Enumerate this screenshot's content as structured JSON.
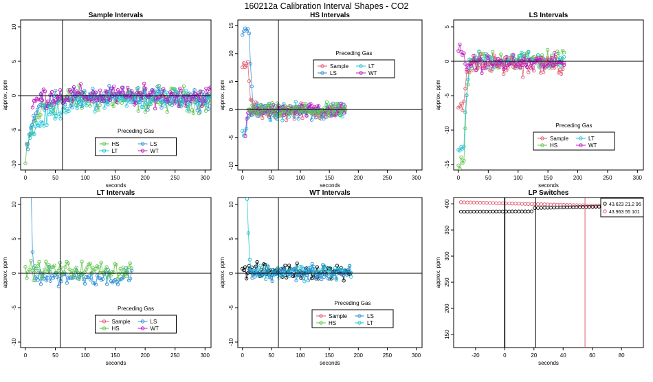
{
  "figure_title": "160212a   Calibration Interval Shapes - CO2",
  "colors": {
    "Sample": "#e05a6e",
    "HS": "#5cc24a",
    "LS": "#2f8fd8",
    "LT": "#1ec4d4",
    "WT": "#c016c0",
    "black": "#000000"
  },
  "chart_data": [
    {
      "type": "scatter",
      "title": "Sample Intervals",
      "xlabel": "seconds",
      "ylabel": "approx. ppm",
      "xlim": [
        -8,
        310
      ],
      "ylim": [
        -10.8,
        11
      ],
      "xticks": [
        0,
        50,
        100,
        150,
        200,
        250,
        300
      ],
      "yticks": [
        -10,
        -5,
        0,
        5,
        10
      ],
      "hline": 0,
      "vline": 62,
      "legend": {
        "title": "Preceding Gas",
        "position": "bottom-middle",
        "entries": [
          "HS",
          "LS",
          "LT",
          "WT"
        ]
      },
      "series": [
        {
          "name": "HS",
          "start": -10,
          "settle": -0.5,
          "tau": 15,
          "noise": 1.5,
          "t_end": 310,
          "t0": 0
        },
        {
          "name": "LS",
          "start": -9,
          "settle": -0.3,
          "tau": 14,
          "noise": 1.2,
          "t_end": 310,
          "t0": 2
        },
        {
          "name": "LT",
          "start": -7,
          "settle": -0.3,
          "tau": 40,
          "noise": 1.2,
          "t_end": 310,
          "t0": 8
        },
        {
          "name": "WT",
          "start": -10.5,
          "settle": 0,
          "tau": 7,
          "noise": 1.2,
          "t_end": 310,
          "t0": 12
        }
      ]
    },
    {
      "type": "scatter",
      "title": "HS Intervals",
      "xlabel": "seconds",
      "ylabel": "approx. ppm",
      "xlim": [
        -8,
        310
      ],
      "ylim": [
        -10.8,
        16
      ],
      "xticks": [
        0,
        50,
        100,
        150,
        200,
        250,
        300
      ],
      "yticks": [
        -10,
        -5,
        0,
        5,
        10,
        15
      ],
      "hline": 0,
      "vline": 62,
      "legend": {
        "title": "Preceding Gas",
        "position": "top-right",
        "entries": [
          "Sample",
          "LT",
          "LS",
          "WT"
        ]
      },
      "series": [
        {
          "name": "LS",
          "start": 14,
          "settle": -0.3,
          "tau": 3,
          "noise": 1.2,
          "t_end": 178,
          "t0": 0,
          "delay": 12
        },
        {
          "name": "Sample",
          "start": 8,
          "settle": -0.3,
          "tau": 3,
          "noise": 1.1,
          "t_end": 178,
          "t0": 0,
          "delay": 10
        },
        {
          "name": "LT",
          "start": -4,
          "settle": -0.3,
          "tau": 3,
          "noise": 1.1,
          "t_end": 178,
          "t0": 0,
          "delay": 5
        },
        {
          "name": "WT",
          "start": -10,
          "settle": -0.2,
          "tau": 3,
          "noise": 1.0,
          "t_end": 178,
          "t0": 5,
          "delay": 3
        },
        {
          "name": "HS",
          "start": -1,
          "settle": -0.2,
          "tau": 3,
          "noise": 1.0,
          "t_end": 178,
          "t0": 10,
          "delay": 0
        }
      ]
    },
    {
      "type": "scatter",
      "title": "LS Intervals",
      "xlabel": "seconds",
      "ylabel": "approx. ppm",
      "xlim": [
        -8,
        310
      ],
      "ylim": [
        -15.8,
        6
      ],
      "xticks": [
        0,
        50,
        100,
        150,
        200,
        250,
        300
      ],
      "yticks": [
        -15,
        -10,
        -5,
        0,
        5
      ],
      "hline": 0,
      "vline": null,
      "legend": {
        "title": "Preceding Gas",
        "position": "bottom-right",
        "entries": [
          "Sample",
          "LT",
          "HS",
          "WT"
        ]
      },
      "series": [
        {
          "name": "HS",
          "start": -15,
          "settle": 0.3,
          "tau": 4,
          "noise": 1.3,
          "t_end": 178,
          "t0": 0,
          "delay": 10
        },
        {
          "name": "LT",
          "start": -13,
          "settle": 0.2,
          "tau": 4,
          "noise": 1.1,
          "t_end": 178,
          "t0": 0,
          "delay": 9
        },
        {
          "name": "Sample",
          "start": -7,
          "settle": -0.5,
          "tau": 4,
          "noise": 1.2,
          "t_end": 178,
          "t0": 0,
          "delay": 8
        },
        {
          "name": "WT",
          "start": 1.5,
          "settle": -0.3,
          "tau": 3,
          "noise": 1.0,
          "t_end": 178,
          "t0": 0,
          "delay": 2
        }
      ]
    },
    {
      "type": "scatter",
      "title": "LT Intervals",
      "xlabel": "seconds",
      "ylabel": "approx. ppm",
      "xlim": [
        -8,
        310
      ],
      "ylim": [
        -10.8,
        11
      ],
      "xticks": [
        0,
        50,
        100,
        150,
        200,
        250,
        300
      ],
      "yticks": [
        -10,
        -5,
        0,
        5,
        10
      ],
      "hline": 0,
      "vline": 58,
      "legend": {
        "title": "Preceding Gas",
        "position": "bottom-middle",
        "entries": [
          "Sample",
          "LS",
          "HS",
          "WT"
        ]
      },
      "series": [
        {
          "name": "LS",
          "start": 12,
          "settle": -0.5,
          "tau": 2,
          "noise": 1.0,
          "t_end": 178,
          "t0": 5,
          "delay": 10
        },
        {
          "name": "HS",
          "start": 0.5,
          "settle": 0.5,
          "tau": 2,
          "noise": 1.0,
          "t_end": 178,
          "t0": 0,
          "delay": 0
        }
      ]
    },
    {
      "type": "scatter",
      "title": "WT Intervals",
      "xlabel": "seconds",
      "ylabel": "approx. ppm",
      "xlim": [
        -8,
        310
      ],
      "ylim": [
        -10.8,
        11
      ],
      "xticks": [
        0,
        50,
        100,
        150,
        200,
        250,
        300
      ],
      "yticks": [
        -10,
        -5,
        0,
        5,
        10
      ],
      "hline": 0,
      "vline": 62,
      "legend": {
        "title": "Preceding Gas",
        "position": "bottom-right",
        "entries": [
          "Sample",
          "LS",
          "HS",
          "LT"
        ]
      },
      "series": [
        {
          "name": "black",
          "start": 0.8,
          "settle": 0.3,
          "tau": 3,
          "noise": 0.9,
          "t_end": 188,
          "t0": 0,
          "delay": 0
        },
        {
          "name": "LT",
          "start": 11,
          "settle": 0.2,
          "tau": 2,
          "noise": 0.9,
          "t_end": 188,
          "t0": 8,
          "delay": 9
        },
        {
          "name": "LS",
          "start": 10,
          "settle": 0,
          "tau": 2,
          "noise": 0.9,
          "t_end": 188,
          "t0": 10,
          "delay": 6
        }
      ]
    },
    {
      "type": "scatter",
      "title": "LP Switches",
      "xlabel": "seconds",
      "ylabel": "approx. ppm",
      "xlim": [
        -35,
        95
      ],
      "ylim": [
        125,
        412
      ],
      "xticks": [
        -20,
        0,
        20,
        40,
        60,
        80
      ],
      "yticks": [
        150,
        200,
        250,
        300,
        350,
        400
      ],
      "vlines": [
        {
          "x": 0,
          "color": "black"
        },
        {
          "x": 21.2,
          "color": "black"
        },
        {
          "x": 55,
          "color": "Sample"
        }
      ],
      "legend": {
        "position": "top-right",
        "entries": [
          {
            "label": "43.623 21.2 96",
            "color": "black"
          },
          {
            "label": "43.963 55 101",
            "color": "Sample"
          }
        ]
      },
      "lp_series": [
        {
          "name": "Sample",
          "x_start": -30,
          "x_end": 71,
          "step": 2.2,
          "y_start": 403,
          "y_end": 396
        },
        {
          "name": "black",
          "x_start": -30,
          "x_end": 71,
          "step": 2.2,
          "y_start": 385,
          "y_step_at": 20,
          "y_after": 392,
          "y_end": 395
        }
      ]
    }
  ]
}
